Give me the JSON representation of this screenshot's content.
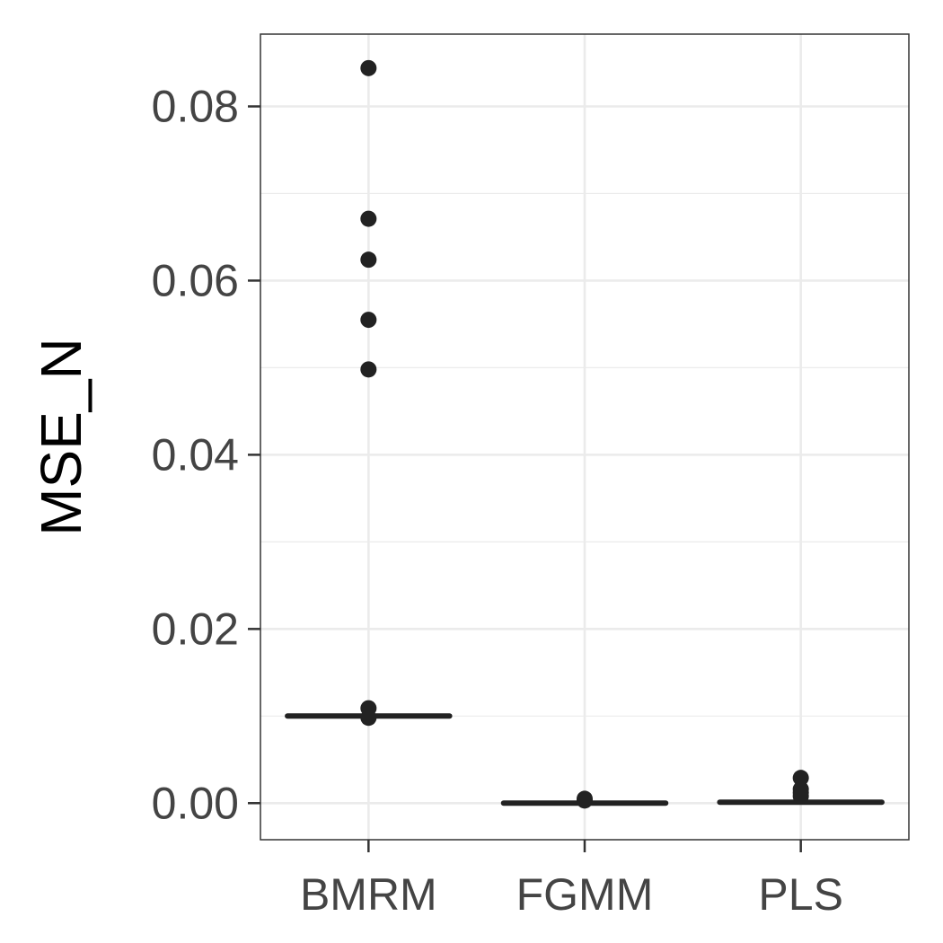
{
  "chart_data": {
    "type": "boxplot",
    "title": "",
    "xlabel": "",
    "ylabel": "MSE_N",
    "ylim": [
      -0.0042,
      0.0883
    ],
    "yticks": [
      0.0,
      0.02,
      0.04,
      0.06,
      0.08
    ],
    "ytick_labels": [
      "0.00",
      "0.02",
      "0.04",
      "0.06",
      "0.08"
    ],
    "grid": true,
    "categories": [
      "BMRM",
      "FGMM",
      "PLS"
    ],
    "boxes": [
      {
        "category": "BMRM",
        "q1": 0.0099,
        "median": 0.01,
        "q3": 0.0101,
        "whisker_low": 0.0098,
        "whisker_high": 0.0102,
        "outliers": [
          0.0844,
          0.0671,
          0.0624,
          0.0555,
          0.0498,
          0.0109,
          0.0098
        ]
      },
      {
        "category": "FGMM",
        "q1": 0.0,
        "median": 0.0,
        "q3": 0.0001,
        "whisker_low": 0.0,
        "whisker_high": 0.0002,
        "outliers": [
          0.0005,
          0.0003
        ]
      },
      {
        "category": "PLS",
        "q1": 0.0,
        "median": 0.0001,
        "q3": 0.0002,
        "whisker_low": 0.0,
        "whisker_high": 0.0004,
        "outliers": [
          0.0029,
          0.0016,
          0.0012,
          0.0008
        ]
      }
    ],
    "colors": {
      "mark": "#222222",
      "grid": "#ebebeb",
      "panel_border": "#333333",
      "tick_text": "#444444"
    }
  }
}
